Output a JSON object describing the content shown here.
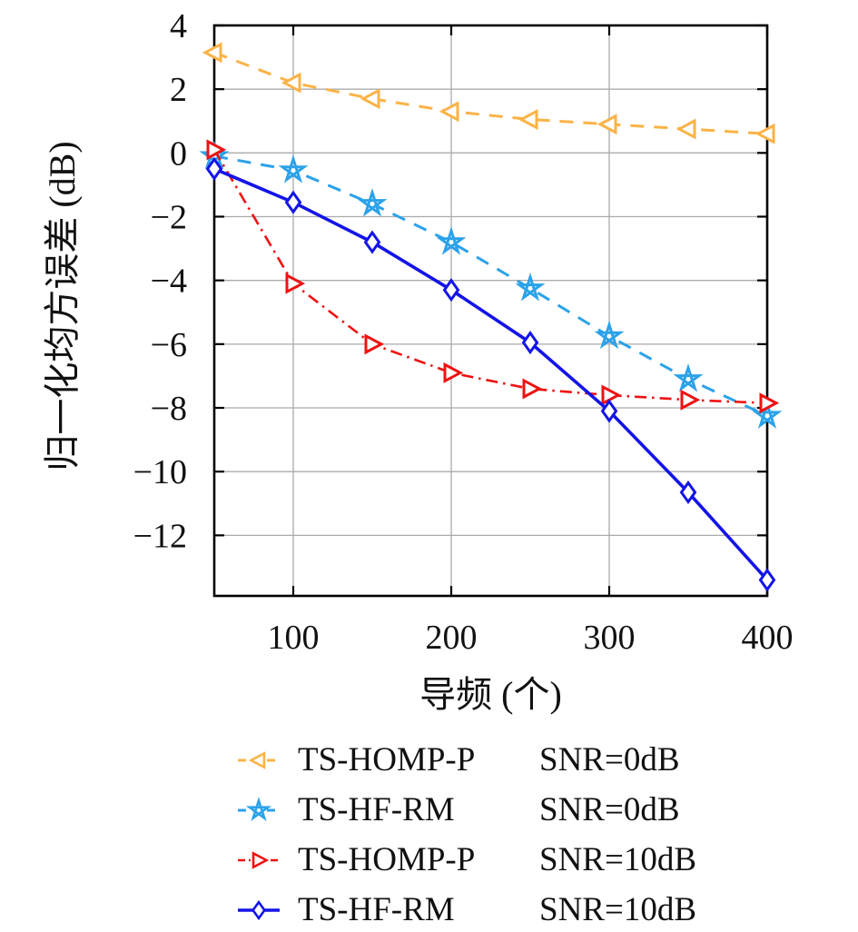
{
  "figure": {
    "background": "#ffffff",
    "axis_color": "#000000",
    "grid_color": "#ababab",
    "text_color": "#111111"
  },
  "chart_data": {
    "type": "line",
    "title": "",
    "xlabel": "导频 (个)",
    "ylabel": "归一化均方误差 (dB)",
    "xlim": [
      50,
      400
    ],
    "ylim": [
      -13.9,
      4
    ],
    "xticks": [
      100,
      200,
      300,
      400
    ],
    "xtick_labels": [
      "100",
      "200",
      "300",
      "400"
    ],
    "yticks": [
      4,
      2,
      0,
      -2,
      -4,
      -6,
      -8,
      -10,
      -12
    ],
    "ytick_labels": [
      "4",
      "2",
      "0",
      "−2",
      "−4",
      "−6",
      "−8",
      "−10",
      "−12"
    ],
    "grid": true,
    "legend_position": "below-left",
    "x": [
      50,
      100,
      150,
      200,
      250,
      300,
      350,
      400
    ],
    "series": [
      {
        "name": "TS-HOMP-P SNR=0dB",
        "legend_method": "TS-HOMP-P",
        "legend_snr": "SNR=0dB",
        "color": "#FBB347",
        "line_style": "dashed",
        "marker": "triangle-left",
        "values": [
          3.15,
          2.2,
          1.7,
          1.3,
          1.05,
          0.9,
          0.75,
          0.6
        ]
      },
      {
        "name": "TS-HF-RM SNR=0dB",
        "legend_method": "TS-HF-RM",
        "legend_snr": "SNR=0dB",
        "color": "#2BA2E9",
        "line_style": "dashed",
        "marker": "star",
        "values": [
          -0.1,
          -0.55,
          -1.6,
          -2.8,
          -4.25,
          -5.75,
          -7.1,
          -8.25
        ]
      },
      {
        "name": "TS-HOMP-P SNR=10dB",
        "legend_method": "TS-HOMP-P",
        "legend_snr": "SNR=10dB",
        "color": "#EE1212",
        "line_style": "dashdot",
        "marker": "triangle-right",
        "values": [
          0.1,
          -4.1,
          -6.0,
          -6.9,
          -7.4,
          -7.6,
          -7.75,
          -7.85
        ]
      },
      {
        "name": "TS-HF-RM SNR=10dB",
        "legend_method": "TS-HF-RM",
        "legend_snr": "SNR=10dB",
        "color": "#1414E8",
        "line_style": "solid",
        "marker": "diamond",
        "values": [
          -0.5,
          -1.55,
          -2.8,
          -4.3,
          -5.95,
          -8.1,
          -10.65,
          -13.4
        ]
      }
    ]
  }
}
